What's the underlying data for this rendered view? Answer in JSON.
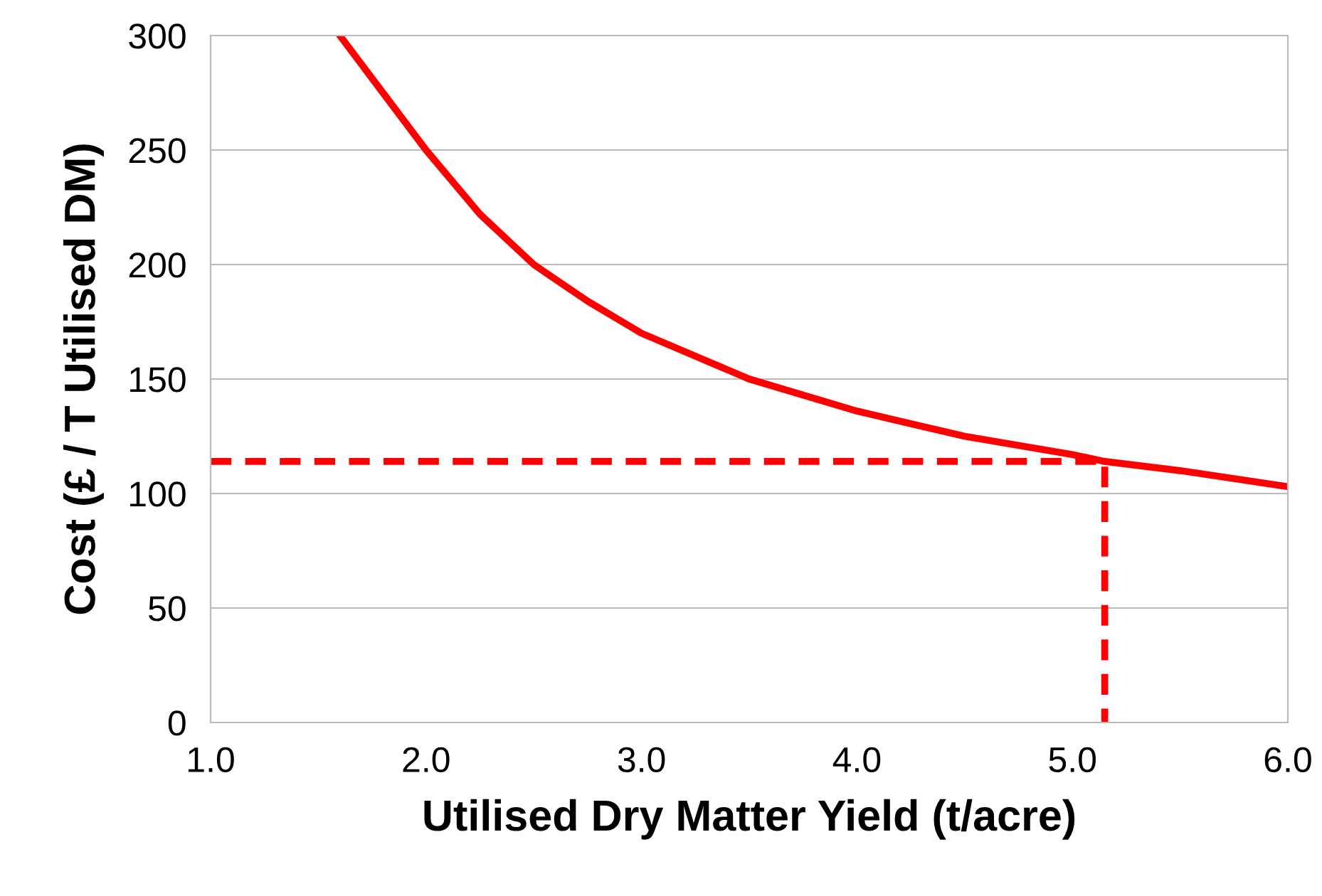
{
  "chart_data": {
    "type": "line",
    "xlabel": "Utilised Dry Matter Yield (t/acre)",
    "ylabel": "Cost (£ / T Utilised DM)",
    "series": [
      {
        "color": "#ff0000",
        "x": [
          1.6,
          1.8,
          2.0,
          2.25,
          2.5,
          2.75,
          3.0,
          3.5,
          4.0,
          4.5,
          5.0,
          5.15,
          5.5,
          6.0
        ],
        "values": [
          300,
          275,
          250,
          222,
          200,
          184,
          170,
          150,
          136,
          125,
          117,
          114,
          110,
          103
        ],
        "line_style": "solid"
      },
      {
        "color": "#ff0000",
        "x": [
          1.0,
          5.15,
          5.15
        ],
        "values": [
          114,
          114,
          0
        ],
        "line_style": "dashed"
      }
    ],
    "xlim": [
      1.0,
      6.0
    ],
    "xticks": [
      {
        "value": 1,
        "label": "1.0"
      },
      {
        "value": 2,
        "label": "2.0"
      },
      {
        "value": 3,
        "label": "3.0"
      },
      {
        "value": 4,
        "label": "4.0"
      },
      {
        "value": 5,
        "label": "5.0"
      },
      {
        "value": 6,
        "label": "6.0"
      }
    ],
    "ylim": [
      0,
      300
    ],
    "yticks": [
      0,
      50,
      100,
      150,
      200,
      250,
      300
    ],
    "grid": "y"
  }
}
